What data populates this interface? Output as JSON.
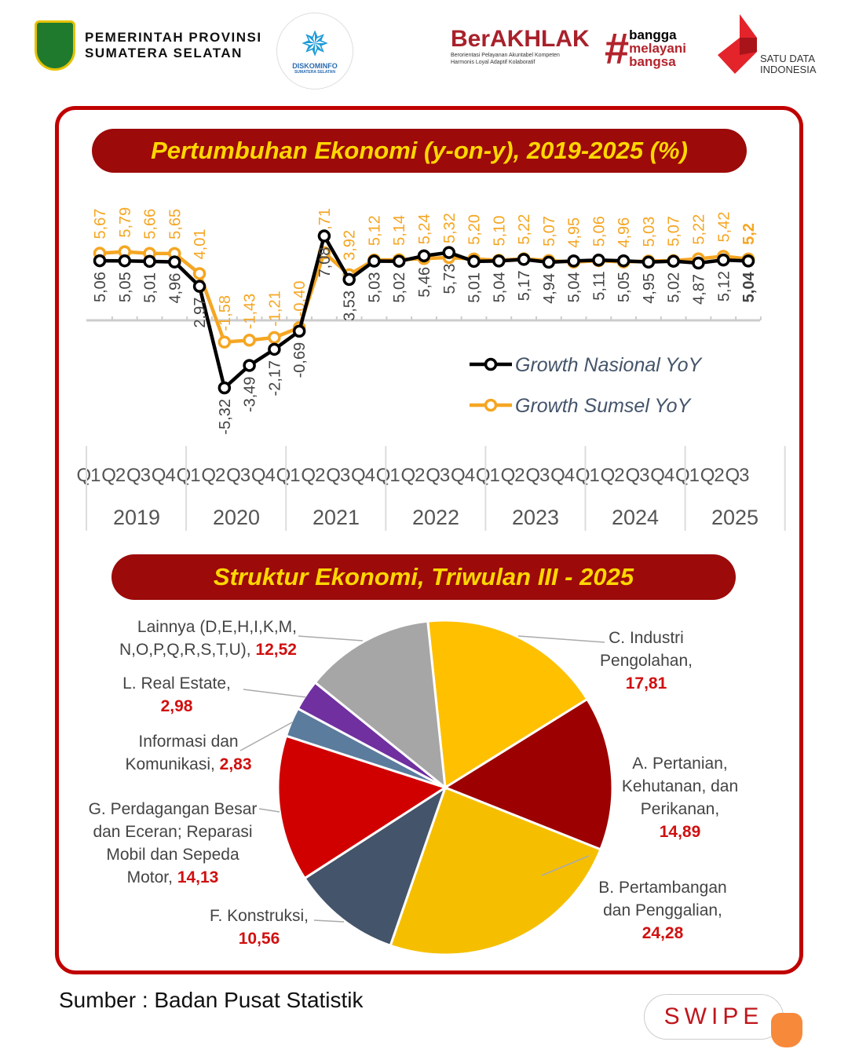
{
  "header": {
    "gov_line1": "PEMERINTAH PROVINSI",
    "gov_line2": "SUMATERA SELATAN",
    "diskominfo": "DISKOMINFO",
    "diskominfo_sub": "SUMATERA SELATAN",
    "berakhlak": "BerAKHLAK",
    "berakhlak_sub1": "Berorientasi Pelayanan Akuntabel Kompeten",
    "berakhlak_sub2": "Harmonis Loyal Adaptif Kolaboratif",
    "bangga1": "bangga",
    "bangga2": "melayani",
    "bangga3": "bangsa",
    "satu_data1": "SATU DATA",
    "satu_data2": "INDONESIA"
  },
  "colors": {
    "frame": "#c00000",
    "banner": "#9c0a0a",
    "banner_text": "#ffd700",
    "nasional": "#000000",
    "sumsel": "#f5a623"
  },
  "chart_data": [
    {
      "type": "line",
      "title": "Pertumbuhan Ekonomi (y-on-y), 2019-2025 (%)",
      "quarters": [
        "Q1",
        "Q2",
        "Q3",
        "Q4",
        "Q1",
        "Q2",
        "Q3",
        "Q4",
        "Q1",
        "Q2",
        "Q3",
        "Q4",
        "Q1",
        "Q2",
        "Q3",
        "Q4",
        "Q1",
        "Q2",
        "Q3",
        "Q4",
        "Q1",
        "Q2",
        "Q3",
        "Q4",
        "Q1",
        "Q2",
        "Q3"
      ],
      "years": [
        "2019",
        "2020",
        "2021",
        "2022",
        "2023",
        "2024",
        "2025"
      ],
      "series": [
        {
          "name": "Growth Nasional YoY",
          "color": "#000000",
          "values": [
            5.06,
            5.05,
            5.01,
            4.96,
            2.97,
            -5.32,
            -3.49,
            -2.17,
            -0.69,
            7.08,
            3.53,
            5.03,
            5.02,
            5.46,
            5.73,
            5.01,
            5.04,
            5.17,
            4.94,
            5.04,
            5.11,
            5.05,
            4.95,
            5.02,
            4.87,
            5.12,
            5.04
          ],
          "labels": [
            "5,06",
            "5,05",
            "5,01",
            "4,96",
            "2,97",
            "-5,32",
            "-3,49",
            "-2,17",
            "-0,69",
            "7,08",
            "3,53",
            "5,03",
            "5,02",
            "5,46",
            "5,73",
            "5,01",
            "5,04",
            "5,17",
            "4,94",
            "5,04",
            "5,11",
            "5,05",
            "4,95",
            "5,02",
            "4,87",
            "5,12",
            "5,04"
          ]
        },
        {
          "name": "Growth Sumsel  YoY",
          "color": "#f5a623",
          "values": [
            5.67,
            5.79,
            5.66,
            5.65,
            4.01,
            -1.58,
            -1.43,
            -1.21,
            -0.4,
            5.71,
            3.92,
            5.12,
            5.14,
            5.24,
            5.32,
            5.2,
            5.1,
            5.22,
            5.07,
            4.95,
            5.06,
            4.96,
            5.03,
            5.07,
            5.22,
            5.42,
            5.2
          ],
          "labels": [
            "5,67",
            "5,79",
            "5,66",
            "5,65",
            "4,01",
            "-1,58",
            "-1,43",
            "-1,21",
            "-0,40",
            "5,71",
            "3,92",
            "5,12",
            "5,14",
            "5,24",
            "5,32",
            "5,20",
            "5,10",
            "5,22",
            "5,07",
            "4,95",
            "5,06",
            "4,96",
            "5,03",
            "5,07",
            "5,22",
            "5,42",
            "5,2"
          ]
        }
      ],
      "legend": "right",
      "grid": false
    },
    {
      "type": "pie",
      "title": "Struktur Ekonomi, Triwulan III - 2025",
      "slices": [
        {
          "name": "C. Industri Pengolahan,",
          "value": 17.81,
          "label": "17,81",
          "color": "#ffc000"
        },
        {
          "name": "A. Pertanian, Kehutanan, dan Perikanan,",
          "value": 14.89,
          "label": "14,89",
          "color": "#9c0000"
        },
        {
          "name": "B. Pertambangan dan Penggalian,",
          "value": 24.28,
          "label": "24,28",
          "color": "#f5bf00"
        },
        {
          "name": "F. Konstruksi,",
          "value": 10.56,
          "label": "10,56",
          "color": "#44546a"
        },
        {
          "name": "G. Perdagangan Besar dan Eceran; Reparasi Mobil dan Sepeda Motor,",
          "value": 14.13,
          "label": "14,13",
          "color": "#d00000"
        },
        {
          "name": "Informasi dan Komunikasi,",
          "value": 2.83,
          "label": "2,83",
          "color": "#5b7c9c"
        },
        {
          "name": "L. Real Estate,",
          "value": 2.98,
          "label": "2,98",
          "color": "#7030a0"
        },
        {
          "name": "Lainnya (D,E,H,I,K,M, N,O,P,Q,R,S,T,U),",
          "value": 12.52,
          "label": "12,52",
          "color": "#a6a6a6"
        }
      ]
    }
  ],
  "footer": {
    "source": "Sumber : Badan Pusat Statistik",
    "swipe": "SWIPE"
  }
}
